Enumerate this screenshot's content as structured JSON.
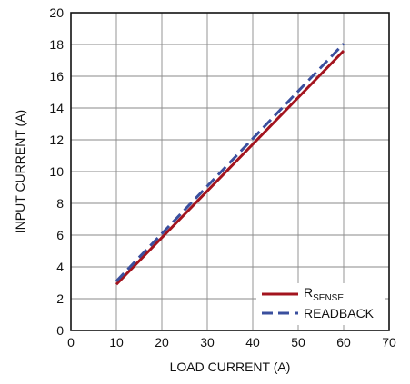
{
  "chart_data": {
    "type": "line",
    "title": "",
    "xlabel": "LOAD CURRENT (A)",
    "ylabel": "INPUT CURRENT (A)",
    "xlim": [
      0,
      70
    ],
    "ylim": [
      0,
      20
    ],
    "xticks": [
      0,
      10,
      20,
      30,
      40,
      50,
      60,
      70
    ],
    "yticks": [
      0,
      2,
      4,
      6,
      8,
      10,
      12,
      14,
      16,
      18,
      20
    ],
    "grid": true,
    "legend": "bottom-right",
    "series": [
      {
        "name_main": "R",
        "name_sub": "SENSE",
        "style": "solid",
        "color": "#a3141e",
        "x": [
          10,
          60
        ],
        "y": [
          2.9,
          17.6
        ]
      },
      {
        "name_main": "READBACK",
        "name_sub": "",
        "style": "dashed",
        "color": "#3a4f9e",
        "x": [
          10,
          60
        ],
        "y": [
          3.1,
          18.05
        ]
      }
    ]
  }
}
